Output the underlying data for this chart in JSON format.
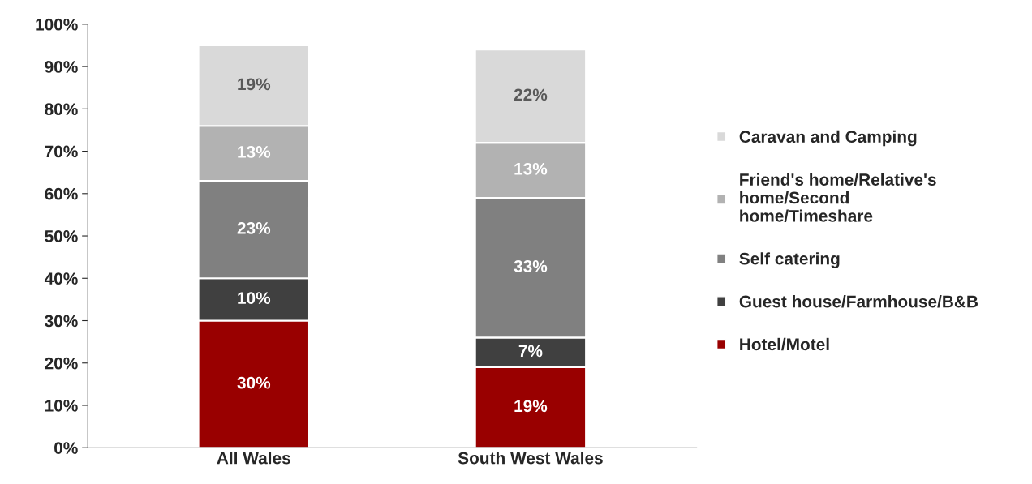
{
  "chart_data": {
    "type": "bar",
    "stacked": true,
    "legend": "right",
    "grid": false,
    "categories": [
      "All Wales",
      "South West Wales"
    ],
    "series": [
      {
        "name": "Hotel/Motel",
        "color": "#990000",
        "values": [
          30,
          19
        ],
        "value_labels": [
          "30%",
          "19%"
        ]
      },
      {
        "name": "Guest house/Farmhouse/B&B",
        "color": "#404040",
        "values": [
          10,
          7
        ],
        "value_labels": [
          "10%",
          "7%"
        ]
      },
      {
        "name": "Self catering",
        "color": "#808080",
        "values": [
          23,
          33
        ],
        "value_labels": [
          "23%",
          "33%"
        ]
      },
      {
        "name": "Friend's home/Relative's home/Second home/Timeshare",
        "color": "#b2b2b2",
        "values": [
          13,
          13
        ],
        "value_labels": [
          "13%",
          "13%"
        ]
      },
      {
        "name": "Caravan and Camping",
        "color": "#d9d9d9",
        "values": [
          19,
          22
        ],
        "value_labels": [
          "19%",
          "22%"
        ]
      }
    ],
    "ylim": [
      0,
      100
    ],
    "yticks": [
      {
        "value": 0,
        "label": "0%"
      },
      {
        "value": 10,
        "label": "10%"
      },
      {
        "value": 20,
        "label": "20%"
      },
      {
        "value": 30,
        "label": "30%"
      },
      {
        "value": 40,
        "label": "40%"
      },
      {
        "value": 50,
        "label": "50%"
      },
      {
        "value": 60,
        "label": "60%"
      },
      {
        "value": 70,
        "label": "70%"
      },
      {
        "value": 80,
        "label": "80%"
      },
      {
        "value": 90,
        "label": "90%"
      },
      {
        "value": 100,
        "label": "100%"
      }
    ]
  }
}
